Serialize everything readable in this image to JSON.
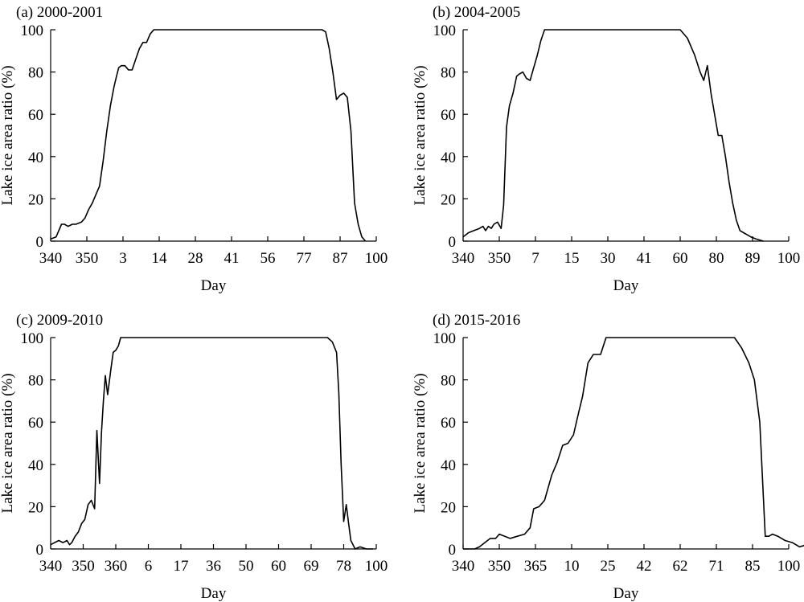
{
  "chart_data": [
    {
      "type": "line",
      "title": "(a) 2000-2001",
      "xlabel": "Day",
      "ylabel": "Lake ice area ratio (%)",
      "ylim": [
        0,
        100
      ],
      "yticks": [
        0,
        20,
        40,
        60,
        80,
        100
      ],
      "xticks": [
        "340",
        "350",
        "3",
        "14",
        "28",
        "41",
        "56",
        "77",
        "87",
        "100"
      ],
      "grid": false,
      "series": [
        {
          "x": [
            0,
            0.15,
            0.3,
            0.38,
            0.48,
            0.6,
            0.7,
            0.85,
            0.95,
            1.05,
            1.15,
            1.25,
            1.35,
            1.45,
            1.55,
            1.65,
            1.75,
            1.82,
            1.88,
            1.95,
            2.05,
            2.15,
            2.25,
            2.35,
            2.45,
            2.55,
            2.65,
            2.75,
            2.85,
            2.92,
            3,
            3.5,
            4,
            5,
            6,
            7,
            7.5,
            7.6,
            7.7,
            7.8,
            7.9,
            8,
            8.1,
            8.2,
            8.3,
            8.4,
            8.5,
            8.6,
            8.7
          ],
          "y": [
            1,
            2,
            8,
            8,
            7,
            8,
            8,
            9,
            11,
            15,
            18,
            22,
            26,
            38,
            52,
            64,
            73,
            78,
            82,
            83,
            83,
            81,
            81,
            86,
            91,
            94,
            94,
            98,
            100,
            100,
            100,
            100,
            100,
            100,
            100,
            100,
            100,
            99,
            91,
            80,
            67,
            69,
            70,
            68,
            52,
            18,
            8,
            2,
            0
          ]
        }
      ]
    },
    {
      "type": "line",
      "title": "(b) 2004-2005",
      "xlabel": "Day",
      "ylabel": "Lake ice area ratio (%)",
      "ylim": [
        0,
        100
      ],
      "yticks": [
        0,
        20,
        40,
        60,
        80,
        100
      ],
      "xticks": [
        "340",
        "350",
        "7",
        "15",
        "30",
        "41",
        "60",
        "80",
        "89",
        "100"
      ],
      "grid": false,
      "series": [
        {
          "x": [
            0,
            0.15,
            0.3,
            0.45,
            0.55,
            0.62,
            0.7,
            0.78,
            0.85,
            0.95,
            1.05,
            1.12,
            1.2,
            1.28,
            1.38,
            1.48,
            1.55,
            1.65,
            1.75,
            1.85,
            1.95,
            2.05,
            2.15,
            2.25,
            2.4,
            2.5,
            2.55,
            2.65,
            3,
            4,
            5,
            6,
            6.2,
            6.4,
            6.55,
            6.65,
            6.75,
            6.85,
            6.95,
            7.05,
            7.15,
            7.25,
            7.35,
            7.45,
            7.55,
            7.65,
            7.75,
            7.85,
            7.95,
            8.1,
            8.3
          ],
          "y": [
            2,
            4,
            5,
            6,
            7,
            5,
            7,
            6,
            8,
            9,
            6,
            17,
            54,
            64,
            70,
            78,
            79,
            80,
            77,
            76,
            82,
            88,
            95,
            100,
            100,
            100,
            100,
            100,
            100,
            100,
            100,
            100,
            96,
            88,
            80,
            76,
            83,
            70,
            60,
            50,
            50,
            40,
            28,
            18,
            10,
            5,
            4,
            3,
            2,
            1,
            0
          ]
        }
      ]
    },
    {
      "type": "line",
      "title": "(c) 2009-2010",
      "xlabel": "Day",
      "ylabel": "Lake ice area ratio (%)",
      "ylim": [
        0,
        100
      ],
      "yticks": [
        0,
        20,
        40,
        60,
        80,
        100
      ],
      "xticks": [
        "340",
        "350",
        "360",
        "6",
        "17",
        "36",
        "50",
        "60",
        "69",
        "78",
        "100"
      ],
      "grid": false,
      "series": [
        {
          "x": [
            0,
            0.12,
            0.25,
            0.38,
            0.5,
            0.58,
            0.65,
            0.75,
            0.85,
            0.95,
            1.05,
            1.15,
            1.25,
            1.35,
            1.42,
            1.5,
            1.56,
            1.62,
            1.68,
            1.75,
            1.85,
            1.92,
            2,
            2.08,
            2.15,
            2.22,
            2.3,
            2.4,
            2.55,
            2.7,
            3,
            4,
            5,
            6,
            7,
            8,
            8.5,
            8.65,
            8.78,
            8.85,
            8.92,
            9.0,
            9.08,
            9.15,
            9.22,
            9.35,
            9.5,
            9.7,
            9.9
          ],
          "y": [
            2,
            3,
            4,
            3,
            4,
            2,
            3,
            6,
            8,
            12,
            14,
            21,
            23,
            19,
            56,
            31,
            55,
            70,
            82,
            73,
            85,
            93,
            94,
            96,
            100,
            100,
            100,
            100,
            100,
            100,
            100,
            100,
            100,
            100,
            100,
            100,
            100,
            98,
            93,
            74,
            40,
            13,
            21,
            12,
            4,
            0,
            1,
            0,
            0
          ]
        }
      ]
    },
    {
      "type": "line",
      "title": "(d) 2015-2016",
      "xlabel": "Day",
      "ylabel": "Lake ice area ratio (%)",
      "ylim": [
        0,
        100
      ],
      "yticks": [
        0,
        20,
        40,
        60,
        80,
        100
      ],
      "xticks": [
        "340",
        "350",
        "365",
        "10",
        "25",
        "42",
        "62",
        "71",
        "85",
        "100"
      ],
      "grid": false,
      "series": [
        {
          "x": [
            0,
            0.12,
            0.22,
            0.32,
            0.45,
            0.6,
            0.75,
            0.9,
            1.0,
            1.15,
            1.3,
            1.5,
            1.7,
            1.85,
            1.95,
            2.1,
            2.25,
            2.45,
            2.6,
            2.75,
            2.9,
            3.05,
            3.2,
            3.3,
            3.45,
            3.6,
            3.8,
            3.95,
            4.1,
            4.25,
            4.4,
            4.6,
            5,
            6,
            7,
            7.5,
            7.7,
            7.9,
            8.05,
            8.2,
            8.35,
            8.45,
            8.55,
            8.7,
            8.9,
            9.1,
            9.3,
            9.5,
            9.7,
            9.85
          ],
          "y": [
            0,
            0,
            0,
            0,
            1,
            3,
            5,
            5,
            7,
            6,
            5,
            6,
            7,
            10,
            19,
            20,
            23,
            35,
            41,
            49,
            50,
            54,
            65,
            72,
            88,
            92,
            92,
            100,
            100,
            100,
            100,
            100,
            100,
            100,
            100,
            100,
            95,
            88,
            80,
            60,
            6,
            6,
            7,
            6,
            4,
            3,
            1,
            2,
            0,
            0
          ]
        }
      ]
    }
  ]
}
